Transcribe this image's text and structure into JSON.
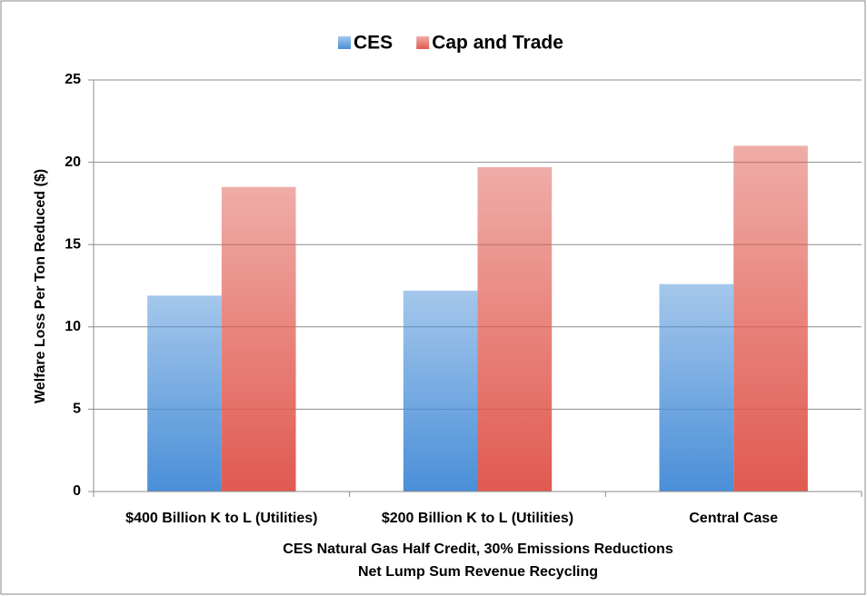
{
  "chart_data": {
    "type": "bar",
    "categories": [
      "$400 Billion K to L (Utilities)",
      "$200 Billion K to L (Utilities)",
      "Central Case"
    ],
    "series": [
      {
        "name": "CES",
        "color": "#4a8fd8",
        "values": [
          11.9,
          12.2,
          12.6
        ]
      },
      {
        "name": "Cap and Trade",
        "color": "#e05a50",
        "values": [
          18.5,
          19.7,
          21.0
        ]
      }
    ],
    "ylabel": "Welfare Loss Per Ton Reduced ($)",
    "xlabel": [
      "CES Natural Gas Half Credit, 30% Emissions Reductions",
      "Net Lump Sum Revenue Recycling"
    ],
    "ylim": [
      0,
      25
    ],
    "yticks": [
      0,
      5,
      10,
      15,
      20,
      25
    ],
    "grid": true,
    "legend": "top"
  }
}
